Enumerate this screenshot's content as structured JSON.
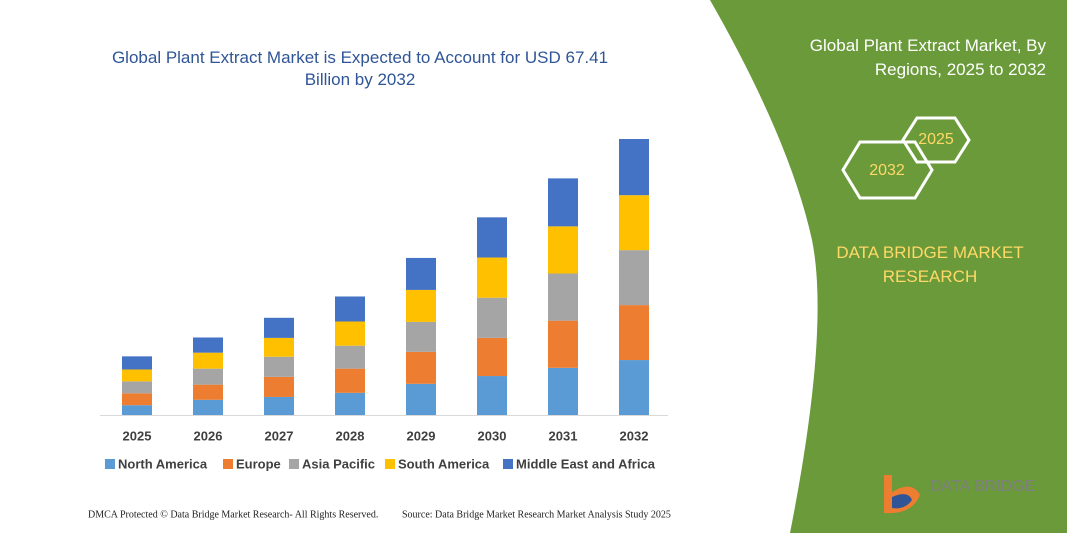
{
  "chart_data": {
    "type": "stacked_bar",
    "title": "Global Plant Extract Market is Expected to Account for USD 67.41 Billion by 2032",
    "categories": [
      "2025",
      "2026",
      "2027",
      "2028",
      "2029",
      "2030",
      "2031",
      "2032"
    ],
    "series": [
      {
        "name": "North America",
        "color": "#5b9bd5",
        "values": [
          2.4,
          3.7,
          4.4,
          5.4,
          7.6,
          9.5,
          11.5,
          13.4
        ]
      },
      {
        "name": "Europe",
        "color": "#ed7d31",
        "values": [
          2.9,
          3.7,
          4.9,
          5.9,
          7.8,
          9.3,
          11.5,
          13.4
        ]
      },
      {
        "name": "Asia Pacific",
        "color": "#a5a5a5",
        "values": [
          2.9,
          3.9,
          4.9,
          5.6,
          7.3,
          9.8,
          11.5,
          13.4
        ]
      },
      {
        "name": "South America",
        "color": "#ffc000",
        "values": [
          2.9,
          3.9,
          4.6,
          5.9,
          7.8,
          9.8,
          11.5,
          13.4
        ]
      },
      {
        "name": "Middle East and Africa",
        "color": "#4472c4",
        "values": [
          3.2,
          3.7,
          4.9,
          6.1,
          7.8,
          9.8,
          11.7,
          13.7
        ]
      }
    ]
  },
  "panel": {
    "title": "Global Plant Extract Market, By Regions, 2025 to 2032",
    "hex_right": "2025",
    "hex_left": "2032",
    "brand": "DATA BRIDGE MARKET RESEARCH",
    "logo": "DATA BRIDGE"
  },
  "footer": {
    "left": "DMCA Protected © Data Bridge Market Research- All Rights Reserved.",
    "right": "Source: Data Bridge Market Research  Market Analysis Study 2025"
  }
}
